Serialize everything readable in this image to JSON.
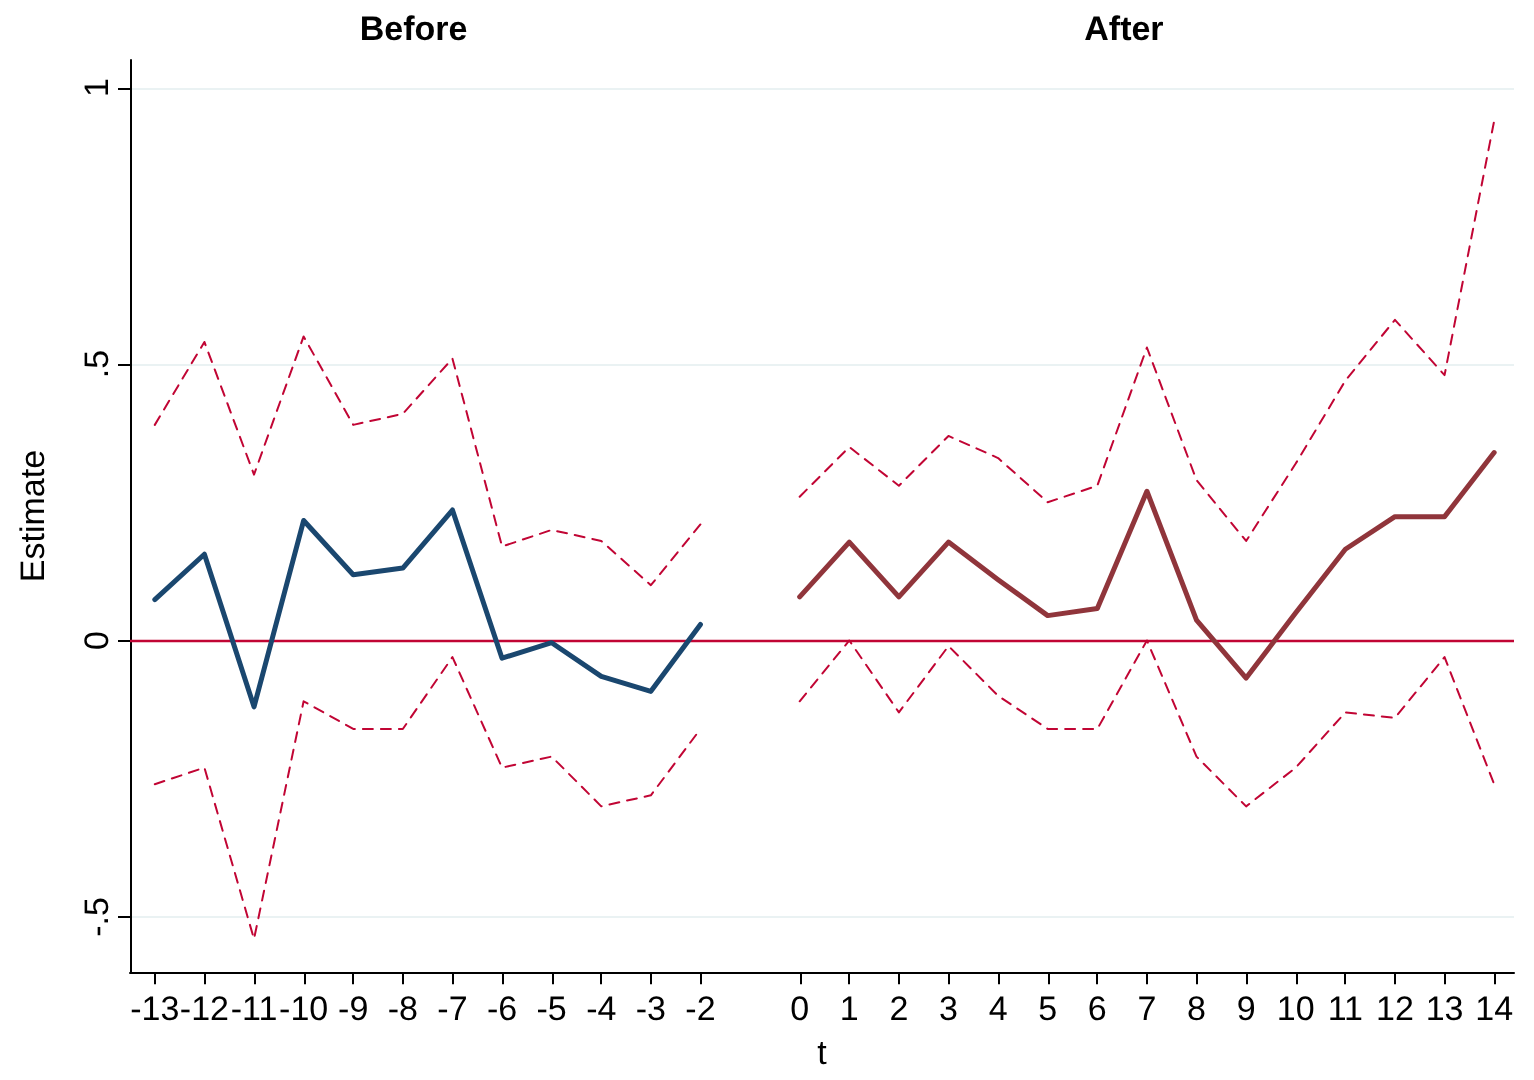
{
  "chart_data": {
    "type": "line",
    "xlabel": "t",
    "ylabel": "Estimate",
    "annotations": [
      "Before",
      "After"
    ],
    "xlim": [
      -13.5,
      14.4
    ],
    "xticks": [
      -13,
      -12,
      -11,
      -10,
      -9,
      -8,
      -7,
      -6,
      -5,
      -4,
      -3,
      -2,
      0,
      1,
      2,
      3,
      4,
      5,
      6,
      7,
      8,
      9,
      10,
      11,
      12,
      13,
      14
    ],
    "ylim": [
      -0.6,
      1.05
    ],
    "yticks": [
      {
        "value": -0.5,
        "label": "-.5"
      },
      0,
      {
        "value": 0.5,
        "label": ".5"
      },
      1
    ],
    "grid": "y",
    "marker": "none",
    "ref_lines": [
      {
        "axis": "y",
        "value": 0,
        "color": "#c10534"
      }
    ],
    "series": [
      {
        "color": "#1a476f",
        "line_style": "solid",
        "x": [
          -13,
          -12,
          -11,
          -10,
          -9,
          -8,
          -7,
          -6,
          -5,
          -4,
          -3,
          -2
        ],
        "values": [
          0.074,
          0.156,
          -0.12,
          0.217,
          0.119,
          0.131,
          0.236,
          -0.032,
          -0.004,
          -0.065,
          -0.092,
          0.029
        ]
      },
      {
        "color": "#c10534",
        "line_style": "dashed",
        "x": [
          -13,
          -12,
          -11,
          -10,
          -9,
          -8,
          -7,
          -6,
          -5,
          -4,
          -3,
          -2
        ],
        "values": [
          0.39,
          0.54,
          0.3,
          0.55,
          0.39,
          0.41,
          0.51,
          0.17,
          0.2,
          0.18,
          0.1,
          0.21
        ]
      },
      {
        "color": "#c10534",
        "line_style": "dashed",
        "x": [
          -13,
          -12,
          -11,
          -10,
          -9,
          -8,
          -7,
          -6,
          -5,
          -4,
          -3,
          -2
        ],
        "values": [
          -0.26,
          -0.23,
          -0.54,
          -0.11,
          -0.16,
          -0.16,
          -0.03,
          -0.23,
          -0.21,
          -0.3,
          -0.28,
          -0.16
        ]
      },
      {
        "color": "#90353b",
        "line_style": "solid",
        "x": [
          0,
          1,
          2,
          3,
          4,
          5,
          6,
          7,
          8,
          9,
          10,
          11,
          12,
          13,
          14
        ],
        "values": [
          0.079,
          0.178,
          0.079,
          0.178,
          0.11,
          0.045,
          0.058,
          0.27,
          0.037,
          -0.068,
          0.05,
          0.165,
          0.224,
          0.224,
          0.34
        ]
      },
      {
        "color": "#c10534",
        "line_style": "dashed",
        "x": [
          0,
          1,
          2,
          3,
          4,
          5,
          6,
          7,
          8,
          9,
          10,
          11,
          12,
          13,
          14
        ],
        "values": [
          0.26,
          0.35,
          0.28,
          0.37,
          0.33,
          0.25,
          0.28,
          0.53,
          0.29,
          0.18,
          0.32,
          0.47,
          0.58,
          0.48,
          0.94
        ]
      },
      {
        "color": "#c10534",
        "line_style": "dashed",
        "x": [
          0,
          1,
          2,
          3,
          4,
          5,
          6,
          7,
          8,
          9,
          10,
          11,
          12,
          13,
          14
        ],
        "values": [
          -0.11,
          0.0,
          -0.13,
          -0.01,
          -0.1,
          -0.16,
          -0.16,
          0.0,
          -0.21,
          -0.3,
          -0.23,
          -0.13,
          -0.14,
          -0.03,
          -0.26
        ]
      }
    ]
  }
}
